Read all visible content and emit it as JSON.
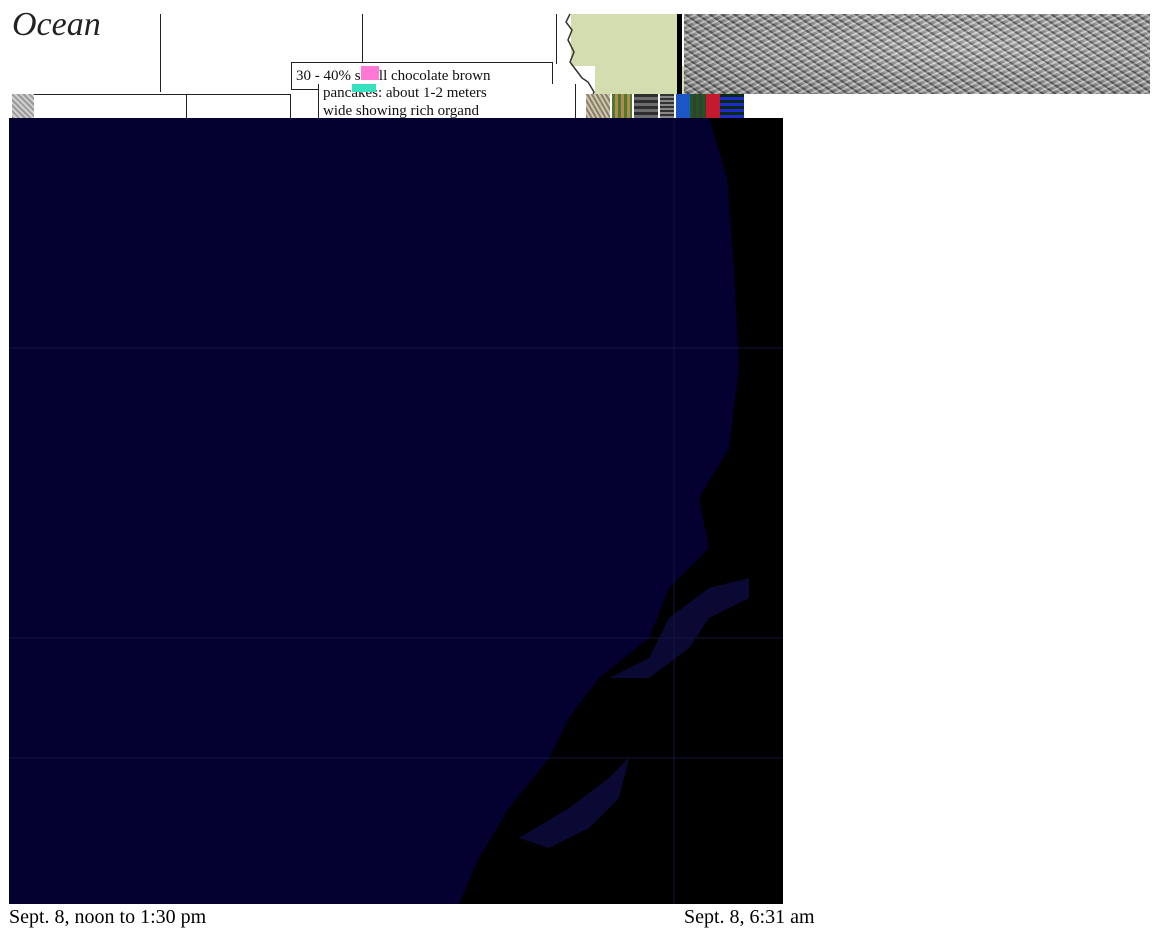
{
  "map": {
    "ocean_label": "Ocean",
    "callout_line1": "30 - 40% small chocolate brown",
    "callout_line2": "pancakes: about 1-2 meters",
    "callout_line3": "wide showing rich organd"
  },
  "captions": {
    "left": "Sept. 8, noon to 1:30 pm",
    "right": "Sept. 8, 6:31 am"
  },
  "colors": {
    "image_background": "#04002f",
    "land_green": "#d4ddb0",
    "sea_black": "#000000"
  }
}
